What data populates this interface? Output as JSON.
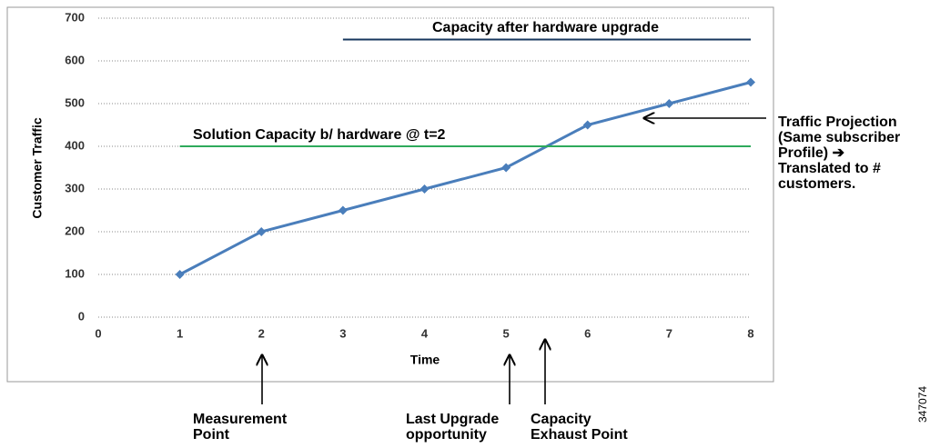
{
  "chart_data": {
    "type": "line",
    "x_label": "Time",
    "y_label": "Customer Traffic",
    "xlim": [
      0,
      8
    ],
    "xticks": [
      0,
      1,
      2,
      3,
      4,
      5,
      6,
      7,
      8
    ],
    "ylim": [
      0,
      700
    ],
    "yticks": [
      0,
      100,
      200,
      300,
      400,
      500,
      600,
      700
    ],
    "grid": true,
    "series": [
      {
        "color": "#4a7ebb",
        "marker": "diamond",
        "x": [
          1,
          2,
          3,
          4,
          5,
          6,
          7,
          8
        ],
        "values": [
          100,
          200,
          250,
          300,
          350,
          450,
          500,
          550
        ]
      },
      {
        "name": "Solution Capacity b/ hardware @ t=2",
        "color": "#2eaa5c",
        "x": [
          1,
          8
        ],
        "values": [
          400,
          400
        ]
      },
      {
        "name": "Capacity after hardware upgrade",
        "color": "#17375e",
        "x": [
          3,
          8
        ],
        "values": [
          650,
          650
        ]
      }
    ],
    "annotations": [
      {
        "lines": [
          "Traffic Projection",
          "(Same subscriber",
          "Profile) ➔",
          "Translated to #",
          "customers."
        ]
      },
      {
        "lines": [
          "Measurement",
          "Point"
        ]
      },
      {
        "lines": [
          "Last Upgrade",
          "opportunity"
        ]
      },
      {
        "lines": [
          "Capacity",
          "Exhaust Point"
        ]
      }
    ],
    "figure_id": "347074"
  }
}
